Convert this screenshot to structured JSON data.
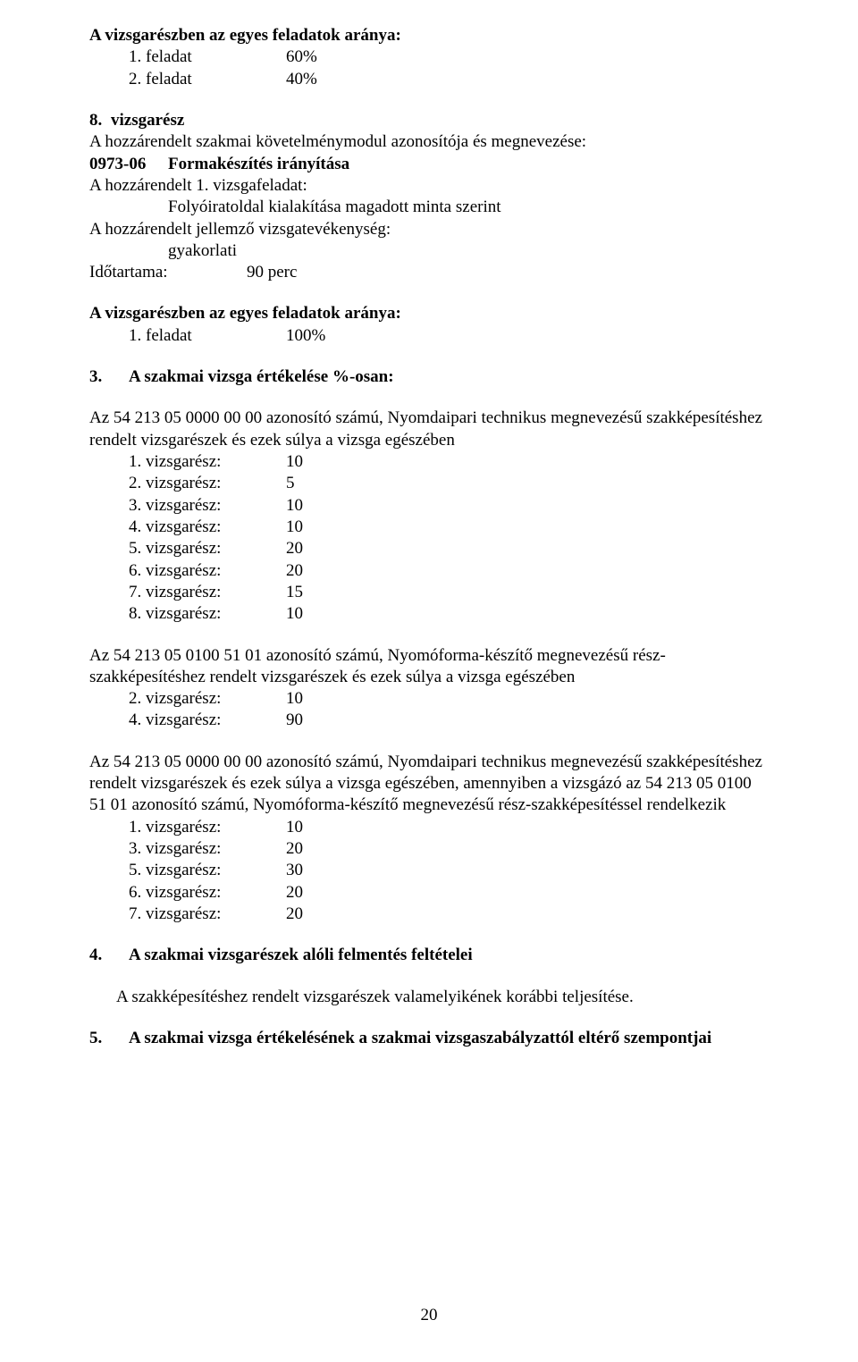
{
  "colors": {
    "text": "#000000",
    "background": "#ffffff"
  },
  "typography": {
    "family": "Times New Roman",
    "size_pt": 14,
    "line_height": 1.28
  },
  "heading1": "A vizsgarészben az egyes feladatok aránya:",
  "tasks1": [
    {
      "label": "1. feladat",
      "value": "60%"
    },
    {
      "label": "2. feladat",
      "value": "40%"
    }
  ],
  "sec8": {
    "num": "8.",
    "title": "vizsgarész",
    "line1": "A hozzárendelt szakmai követelménymodul azonosítója és megnevezése:",
    "code_label": "0973-06",
    "code_title": "Formakészítés irányítása",
    "line2": "A hozzárendelt 1. vizsgafeladat:",
    "sub": "Folyóiratoldal kialakítása magadott minta szerint",
    "line3": "A hozzárendelt jellemző vizsgatevékenység:",
    "sub2": "gyakorlati",
    "dur_label": "Időtartama:",
    "dur_val": "90 perc"
  },
  "heading2": "A vizsgarészben az egyes feladatok aránya:",
  "tasks2": [
    {
      "label": "1. feladat",
      "value": "100%"
    }
  ],
  "sec3": {
    "num": "3.",
    "title": "A szakmai vizsga értékelése %-osan:"
  },
  "groupA": {
    "para": "Az 54 213 05 0000 00 00 azonosító számú, Nyomdaipari technikus megnevezésű szakképesítéshez rendelt vizsgarészek és ezek súlya a vizsga egészében",
    "rows": [
      {
        "label": "1. vizsgarész:",
        "value": "10"
      },
      {
        "label": "2. vizsgarész:",
        "value": "5"
      },
      {
        "label": "3. vizsgarész:",
        "value": "10"
      },
      {
        "label": "4. vizsgarész:",
        "value": "10"
      },
      {
        "label": "5. vizsgarész:",
        "value": "20"
      },
      {
        "label": "6. vizsgarész:",
        "value": "20"
      },
      {
        "label": "7. vizsgarész:",
        "value": "15"
      },
      {
        "label": "8. vizsgarész:",
        "value": "10"
      }
    ]
  },
  "groupB": {
    "para": "Az 54 213 05 0100 51 01 azonosító számú, Nyomóforma-készítő megnevezésű rész-szakképesítéshez rendelt vizsgarészek és ezek súlya a vizsga egészében",
    "rows": [
      {
        "label": "2. vizsgarész:",
        "value": "10"
      },
      {
        "label": "4. vizsgarész:",
        "value": "90"
      }
    ]
  },
  "groupC": {
    "para": "Az 54 213 05 0000 00 00 azonosító számú, Nyomdaipari technikus megnevezésű szakképesítéshez rendelt vizsgarészek és ezek súlya a vizsga egészében, amennyiben a vizsgázó az 54 213 05 0100 51 01 azonosító számú, Nyomóforma-készítő megnevezésű rész-szakképesítéssel rendelkezik",
    "rows": [
      {
        "label": "1. vizsgarész:",
        "value": "10"
      },
      {
        "label": "3. vizsgarész:",
        "value": "20"
      },
      {
        "label": "5. vizsgarész:",
        "value": "30"
      },
      {
        "label": "6. vizsgarész:",
        "value": "20"
      },
      {
        "label": "7. vizsgarész:",
        "value": "20"
      }
    ]
  },
  "sec4": {
    "num": "4.",
    "title": "A szakmai vizsgarészek alóli felmentés feltételei",
    "body": "A szakképesítéshez rendelt vizsgarészek valamelyikének korábbi teljesítése."
  },
  "sec5": {
    "num": "5.",
    "title": "A szakmai vizsga értékelésének a szakmai vizsgaszabályzattól eltérő szempontjai"
  },
  "page_number": "20"
}
